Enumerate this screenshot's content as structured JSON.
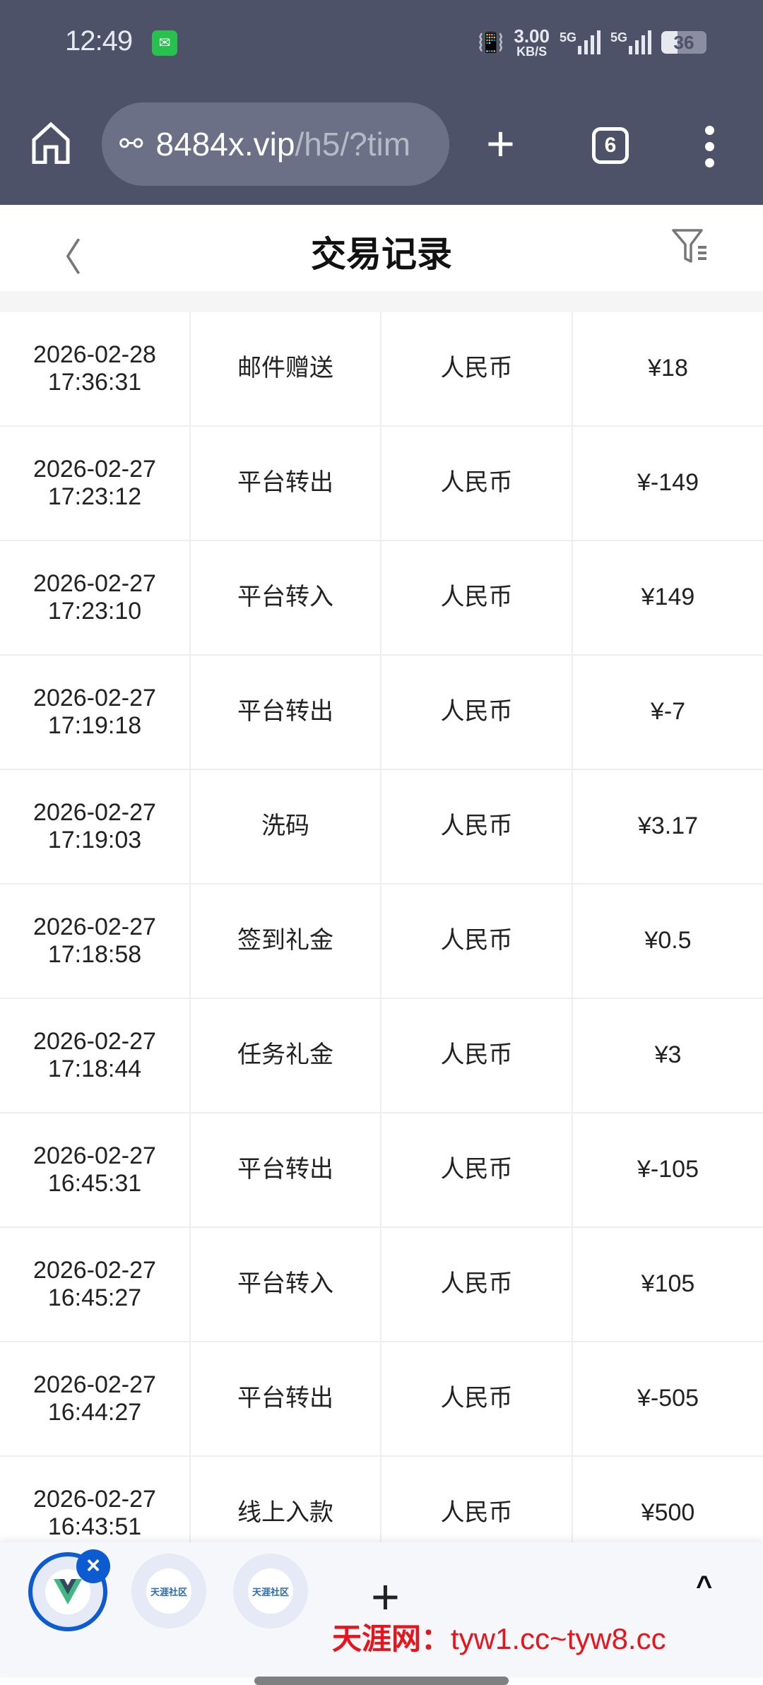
{
  "status_bar": {
    "time": "12:49",
    "speed": "3.00",
    "speed_unit": "KB/S",
    "net1": "5G",
    "net2": "5G",
    "battery": "36"
  },
  "browser": {
    "url_host": "8484x.vip",
    "url_path": "/h5/?tim",
    "tab_count": "6"
  },
  "header": {
    "title": "交易记录"
  },
  "records": [
    {
      "date": "2026-02-28",
      "time": "17:36:31",
      "type": "邮件赠送",
      "currency": "人民币",
      "amount": "¥18"
    },
    {
      "date": "2026-02-27",
      "time": "17:23:12",
      "type": "平台转出",
      "currency": "人民币",
      "amount": "¥-149"
    },
    {
      "date": "2026-02-27",
      "time": "17:23:10",
      "type": "平台转入",
      "currency": "人民币",
      "amount": "¥149"
    },
    {
      "date": "2026-02-27",
      "time": "17:19:18",
      "type": "平台转出",
      "currency": "人民币",
      "amount": "¥-7"
    },
    {
      "date": "2026-02-27",
      "time": "17:19:03",
      "type": "洗码",
      "currency": "人民币",
      "amount": "¥3.17"
    },
    {
      "date": "2026-02-27",
      "time": "17:18:58",
      "type": "签到礼金",
      "currency": "人民币",
      "amount": "¥0.5"
    },
    {
      "date": "2026-02-27",
      "time": "17:18:44",
      "type": "任务礼金",
      "currency": "人民币",
      "amount": "¥3"
    },
    {
      "date": "2026-02-27",
      "time": "16:45:31",
      "type": "平台转出",
      "currency": "人民币",
      "amount": "¥-105"
    },
    {
      "date": "2026-02-27",
      "time": "16:45:27",
      "type": "平台转入",
      "currency": "人民币",
      "amount": "¥105"
    },
    {
      "date": "2026-02-27",
      "time": "16:44:27",
      "type": "平台转出",
      "currency": "人民币",
      "amount": "¥-505"
    },
    {
      "date": "2026-02-27",
      "time": "16:43:51",
      "type": "线上入款",
      "currency": "人民币",
      "amount": "¥500"
    }
  ],
  "bottom_bar": {
    "tab_logo_text": "天涯社区",
    "watermark_name": "天涯网：",
    "watermark_urls": "tyw1.cc~tyw8.cc"
  },
  "colors": {
    "browser_bar": "#4d5269",
    "active_tab": "#0d5bd1",
    "watermark": "#e8141b"
  }
}
